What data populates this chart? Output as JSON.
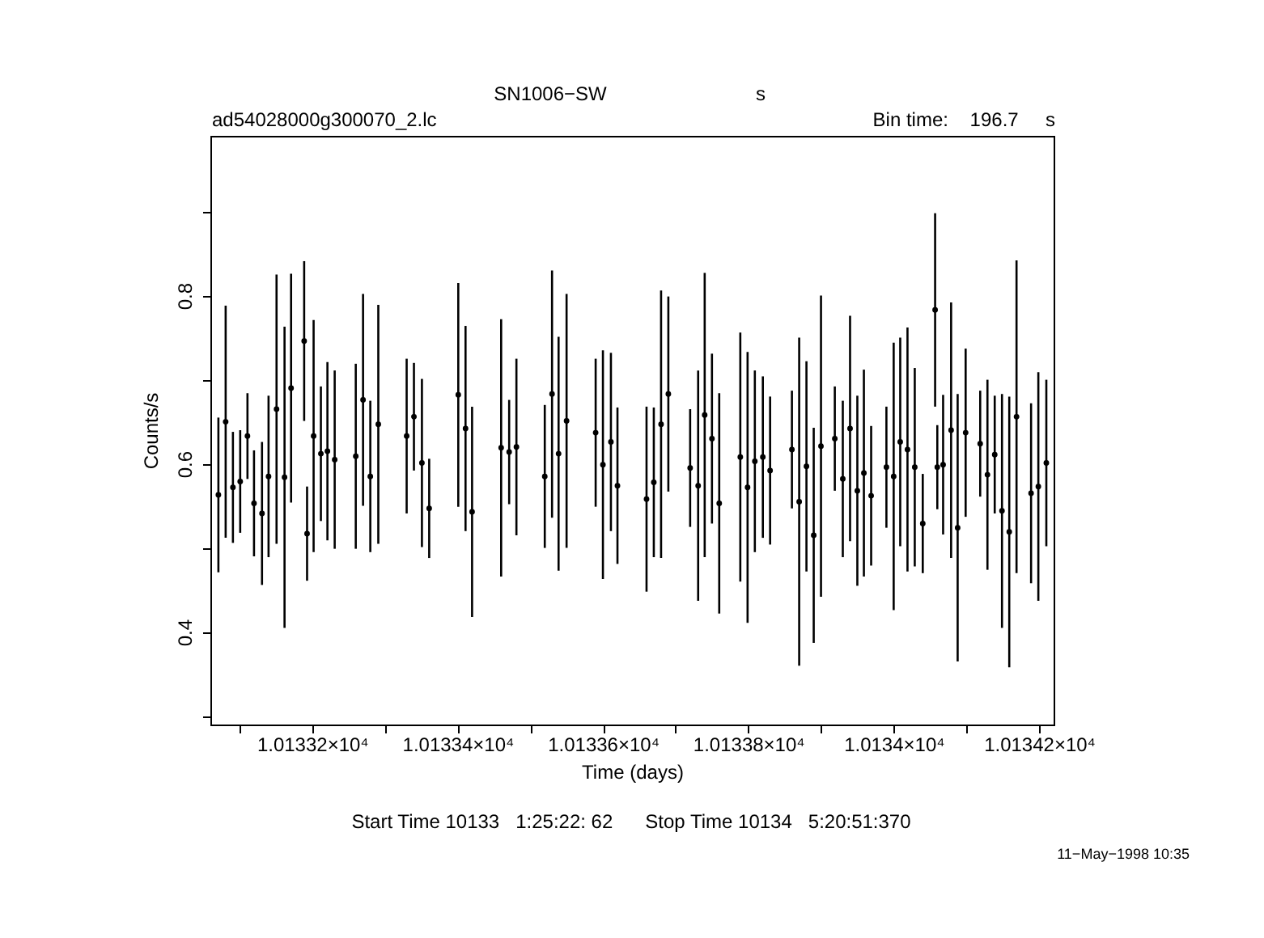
{
  "chart_data": {
    "type": "scatter",
    "title": "SN1006−SW",
    "subtitle": "ad54028000g300070_2.lc",
    "xlabel": "Time (days)",
    "ylabel": "Counts/s",
    "annotations": [
      "s",
      "Bin time:    196.7     s",
      "Start Time 10133   1:25:22: 62      Stop Time 10134   5:20:51:370",
      "11−May−1998 10:35"
    ],
    "xlim": [
      10133.06,
      10134.22
    ],
    "ylim": [
      0.29,
      0.99
    ],
    "xticks": [
      {
        "value": 10133.1,
        "label": null
      },
      {
        "value": 10133.2,
        "label": "1.01332×10⁴"
      },
      {
        "value": 10133.3,
        "label": null
      },
      {
        "value": 10133.4,
        "label": "1.01334×10⁴"
      },
      {
        "value": 10133.5,
        "label": null
      },
      {
        "value": 10133.6,
        "label": "1.01336×10⁴"
      },
      {
        "value": 10133.7,
        "label": null
      },
      {
        "value": 10133.8,
        "label": "1.01338×10⁴"
      },
      {
        "value": 10133.9,
        "label": null
      },
      {
        "value": 10134.0,
        "label": "1.0134×10⁴"
      },
      {
        "value": 10134.1,
        "label": null
      },
      {
        "value": 10134.2,
        "label": "1.01342×10⁴"
      }
    ],
    "yticks": [
      {
        "value": 0.3,
        "label": null
      },
      0.4,
      {
        "value": 0.5,
        "label": null
      },
      0.6,
      {
        "value": 0.7,
        "label": null
      },
      0.8,
      {
        "value": 0.9,
        "label": null
      }
    ],
    "grid": false,
    "marker": "circle",
    "series": [
      {
        "color": "#000000",
        "x": [
          10133.071,
          10133.081,
          10133.091,
          10133.101,
          10133.111,
          10133.12,
          10133.131,
          10133.14,
          10133.151,
          10133.162,
          10133.171,
          10133.189,
          10133.193,
          10133.202,
          10133.212,
          10133.221,
          10133.231,
          10133.26,
          10133.27,
          10133.28,
          10133.291,
          10133.33,
          10133.34,
          10133.351,
          10133.361,
          10133.401,
          10133.411,
          10133.42,
          10133.46,
          10133.471,
          10133.481,
          10133.52,
          10133.53,
          10133.539,
          10133.55,
          10133.59,
          10133.6,
          10133.611,
          10133.62,
          10133.66,
          10133.67,
          10133.68,
          10133.69,
          10133.72,
          10133.731,
          10133.74,
          10133.75,
          10133.76,
          10133.789,
          10133.799,
          10133.809,
          10133.82,
          10133.83,
          10133.86,
          10133.87,
          10133.88,
          10133.89,
          10133.9,
          10133.919,
          10133.93,
          10133.94,
          10133.95,
          10133.959,
          10133.969,
          10133.99,
          10134.0,
          10134.009,
          10134.019,
          10134.029,
          10134.04,
          10134.057,
          10134.06,
          10134.068,
          10134.079,
          10134.088,
          10134.099,
          10134.119,
          10134.129,
          10134.139,
          10134.149,
          10134.159,
          10134.169,
          10134.189,
          10134.199,
          10134.21
        ],
        "values": [
          0.563,
          0.65,
          0.572,
          0.579,
          0.633,
          0.553,
          0.541,
          0.585,
          0.665,
          0.584,
          0.69,
          0.746,
          0.517,
          0.633,
          0.612,
          0.615,
          0.605,
          0.609,
          0.676,
          0.585,
          0.647,
          0.633,
          0.656,
          0.601,
          0.547,
          0.682,
          0.642,
          0.543,
          0.619,
          0.614,
          0.62,
          0.585,
          0.683,
          0.612,
          0.651,
          0.637,
          0.599,
          0.626,
          0.574,
          0.558,
          0.578,
          0.647,
          0.683,
          0.595,
          0.574,
          0.658,
          0.63,
          0.553,
          0.608,
          0.572,
          0.603,
          0.608,
          0.592,
          0.617,
          0.555,
          0.597,
          0.515,
          0.621,
          0.63,
          0.582,
          0.642,
          0.568,
          0.589,
          0.562,
          0.596,
          0.585,
          0.626,
          0.617,
          0.596,
          0.529,
          0.783,
          0.596,
          0.599,
          0.64,
          0.524,
          0.637,
          0.624,
          0.587,
          0.611,
          0.544,
          0.519,
          0.656,
          0.565,
          0.573,
          0.601
        ],
        "errors": [
          0.092,
          0.138,
          0.066,
          0.061,
          0.051,
          0.063,
          0.085,
          0.096,
          0.16,
          0.179,
          0.136,
          0.095,
          0.056,
          0.138,
          0.08,
          0.106,
          0.106,
          0.11,
          0.126,
          0.09,
          0.142,
          0.092,
          0.064,
          0.1,
          0.059,
          0.133,
          0.122,
          0.125,
          0.153,
          0.062,
          0.105,
          0.085,
          0.147,
          0.139,
          0.151,
          0.088,
          0.136,
          0.106,
          0.093,
          0.11,
          0.089,
          0.159,
          0.116,
          0.07,
          0.137,
          0.169,
          0.101,
          0.131,
          0.148,
          0.161,
          0.108,
          0.096,
          0.088,
          0.07,
          0.195,
          0.125,
          0.128,
          0.179,
          0.062,
          0.093,
          0.134,
          0.113,
          0.123,
          0.083,
          0.072,
          0.159,
          0.124,
          0.145,
          0.118,
          0.059,
          0.115,
          0.05,
          0.083,
          0.152,
          0.159,
          0.1,
          0.063,
          0.113,
          0.07,
          0.139,
          0.161,
          0.186,
          0.107,
          0.136,
          0.099
        ]
      }
    ]
  }
}
